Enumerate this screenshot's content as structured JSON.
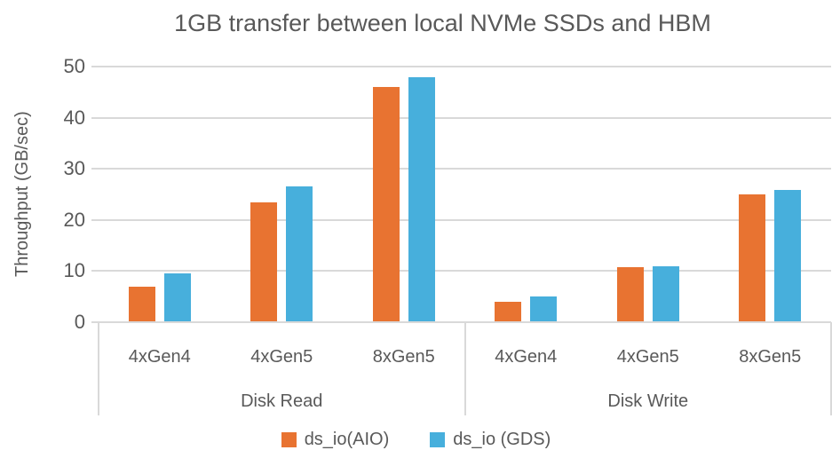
{
  "chart_data": {
    "type": "bar",
    "title": "1GB transfer between local NVMe SSDs and HBM",
    "xlabel": "",
    "ylabel": "Throughput (GB/sec)",
    "ylim": [
      0,
      50
    ],
    "yticks": [
      0,
      10,
      20,
      30,
      40,
      50
    ],
    "grid": true,
    "legend_position": "bottom",
    "groups": [
      {
        "label": "Disk Read",
        "categories": [
          "4xGen4",
          "4xGen5",
          "8xGen5"
        ]
      },
      {
        "label": "Disk Write",
        "categories": [
          "4xGen4",
          "4xGen5",
          "8xGen5"
        ]
      }
    ],
    "categories_flat": [
      "4xGen4",
      "4xGen5",
      "8xGen5",
      "4xGen4",
      "4xGen5",
      "8xGen5"
    ],
    "series": [
      {
        "name": "ds_io(AIO)",
        "color": "#e87331",
        "values": [
          7.0,
          23.4,
          46.0,
          4.0,
          10.7,
          25.0
        ]
      },
      {
        "name": "ds_io (GDS)",
        "color": "#47afdc",
        "values": [
          9.6,
          26.5,
          48.0,
          5.0,
          11.0,
          25.8
        ]
      }
    ],
    "colors": {
      "text": "#595959",
      "gridline": "#d9d9d9",
      "axis": "#d9d9d9",
      "background": "#ffffff"
    }
  }
}
